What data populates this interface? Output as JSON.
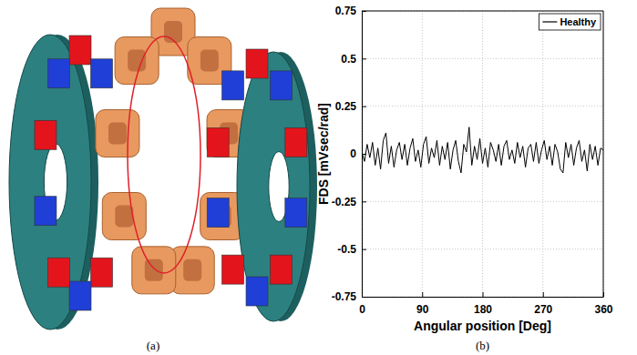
{
  "panel_labels": [
    "(a)",
    "(b)"
  ],
  "chart_data": {
    "type": "line",
    "x": [
      0,
      4,
      8,
      12,
      16,
      20,
      24,
      28,
      32,
      36,
      40,
      44,
      48,
      52,
      56,
      60,
      64,
      68,
      72,
      76,
      80,
      84,
      88,
      92,
      96,
      100,
      104,
      108,
      112,
      116,
      120,
      124,
      128,
      132,
      136,
      140,
      144,
      148,
      152,
      156,
      160,
      164,
      168,
      172,
      176,
      180,
      184,
      188,
      192,
      196,
      200,
      204,
      208,
      212,
      216,
      220,
      224,
      228,
      232,
      236,
      240,
      244,
      248,
      252,
      256,
      260,
      264,
      268,
      272,
      276,
      280,
      284,
      288,
      292,
      296,
      300,
      304,
      308,
      312,
      316,
      320,
      324,
      328,
      332,
      336,
      340,
      344,
      348,
      352,
      356,
      360
    ],
    "series": [
      {
        "name": "Healthy",
        "color": "#000000",
        "values": [
          0.01,
          -0.04,
          0.05,
          -0.02,
          0.06,
          -0.06,
          0.03,
          -0.08,
          0.07,
          0.11,
          -0.05,
          0.04,
          -0.07,
          0.02,
          0.06,
          -0.03,
          0.05,
          -0.06,
          0.03,
          0.08,
          -0.04,
          0.02,
          -0.07,
          0.05,
          0.09,
          -0.05,
          0.03,
          -0.02,
          0.07,
          -0.06,
          0.04,
          -0.03,
          0.06,
          -0.08,
          0.02,
          0.07,
          -0.04,
          -0.1,
          0.05,
          0.01,
          0.14,
          -0.06,
          0.04,
          -0.03,
          0.08,
          -0.05,
          0.03,
          -0.07,
          0.06,
          0.02,
          -0.04,
          0.05,
          -0.06,
          0.04,
          0.07,
          -0.03,
          0.02,
          -0.05,
          0.06,
          -0.02,
          0.04,
          -0.07,
          0.03,
          0.05,
          -0.04,
          0.06,
          -0.05,
          0.02,
          0.07,
          -0.03,
          0.04,
          -0.06,
          0.05,
          0.01,
          -0.08,
          -0.1,
          0.06,
          -0.02,
          0.05,
          -0.06,
          0.03,
          0.07,
          -0.04,
          0.02,
          -0.09,
          0.05,
          -0.03,
          0.04,
          -0.06,
          0.03,
          0.02
        ]
      }
    ],
    "xlabel": "Angular position [Deg]",
    "ylabel": "FDS [mVsec/rad]",
    "xlim": [
      0,
      360
    ],
    "ylim": [
      -0.75,
      0.75
    ],
    "xticks": [
      0,
      90,
      180,
      270,
      360
    ],
    "yticks": [
      -0.75,
      -0.5,
      -0.25,
      0,
      0.25,
      0.5,
      0.75
    ],
    "grid": true,
    "legend": "upper right"
  }
}
